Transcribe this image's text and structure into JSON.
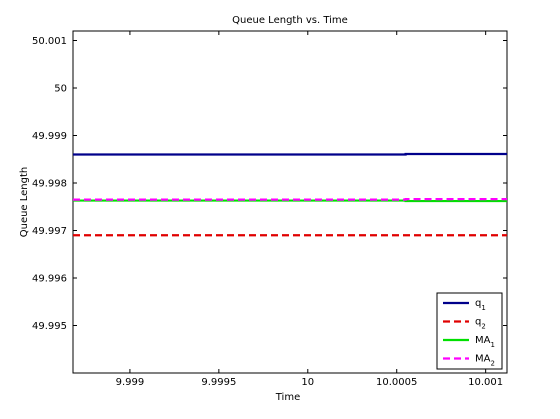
{
  "chart_data": {
    "type": "line",
    "title": "Queue Length vs. Time",
    "xlabel": "Time",
    "ylabel": "Queue Length",
    "xlim": [
      9.99868,
      10.00112
    ],
    "ylim": [
      49.994,
      50.0012
    ],
    "xticks": [
      9.999,
      9.9995,
      10,
      10.0005,
      10.001
    ],
    "xtick_labels": [
      "9.999",
      "9.9995",
      "10",
      "10.0005",
      "10.001"
    ],
    "yticks": [
      49.995,
      49.996,
      49.997,
      49.998,
      49.999,
      50,
      50.001
    ],
    "ytick_labels": [
      "49.995",
      "49.996",
      "49.997",
      "49.998",
      "49.999",
      "50",
      "50.001"
    ],
    "grid": false,
    "legend_position": "bottom-right",
    "series": [
      {
        "name": "q",
        "subscript": "1",
        "color": "#00008b",
        "dash": "solid",
        "x": [
          9.99868,
          10.00055,
          10.00055,
          10.00112
        ],
        "y": [
          49.9986,
          49.9986,
          49.99861,
          49.99861
        ]
      },
      {
        "name": "q",
        "subscript": "2",
        "color": "#e00000",
        "dash": "dashed",
        "x": [
          9.99868,
          10.00112
        ],
        "y": [
          49.9969,
          49.9969
        ]
      },
      {
        "name": "MA",
        "subscript": "1",
        "color": "#00e000",
        "dash": "solid",
        "x": [
          9.99868,
          10.00055,
          10.00055,
          10.00112
        ],
        "y": [
          49.99763,
          49.99763,
          49.99762,
          49.99762
        ]
      },
      {
        "name": "MA",
        "subscript": "2",
        "color": "#ff00ff",
        "dash": "dashed",
        "x": [
          9.99868,
          10.00055,
          10.00055,
          10.00112
        ],
        "y": [
          49.99765,
          49.99765,
          49.99766,
          49.99766
        ]
      }
    ]
  }
}
